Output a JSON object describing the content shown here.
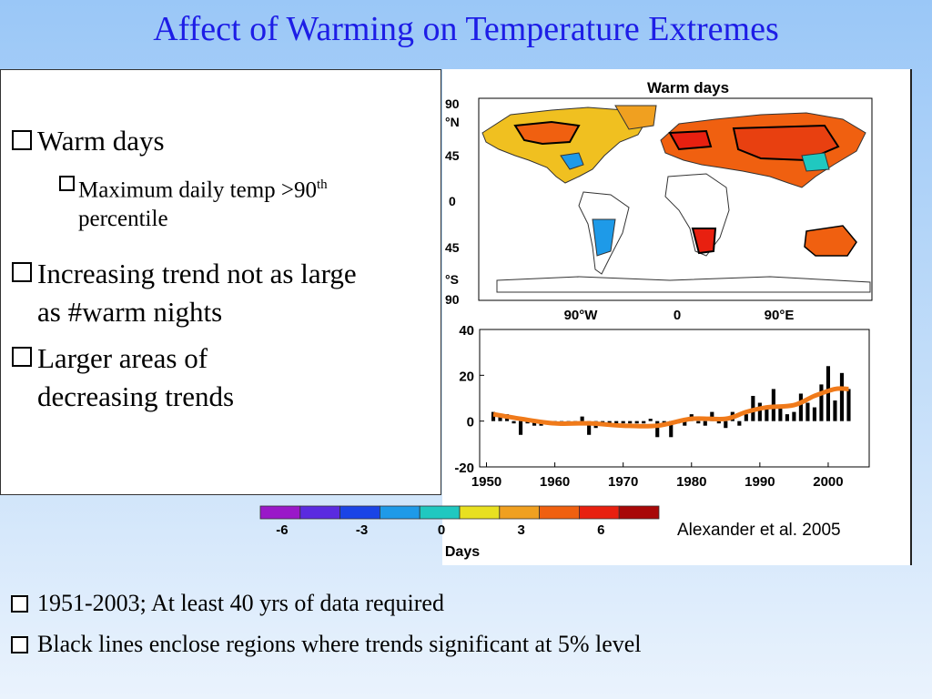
{
  "slide": {
    "title": "Affect of Warming on Temperature Extremes",
    "bullets": [
      {
        "text": "Warm days"
      },
      {
        "text": "Maximum daily temp >90",
        "sup": "th",
        "suffix": " percentile"
      },
      {
        "text": "Increasing trend not as large as #warm nights"
      },
      {
        "text": "Larger areas of decreasing trends"
      }
    ],
    "citation": "Alexander et al. 2005",
    "bottom_bullets": [
      "1951-2003; At least 40 yrs of data required",
      "Black lines enclose regions where trends significant at 5% level"
    ]
  },
  "map": {
    "title": "Warm days",
    "lat_labels": [
      "90",
      "°N",
      "45",
      "0",
      "45",
      "°S",
      "90"
    ],
    "lon_labels": [
      "90°W",
      "0",
      "90°E"
    ]
  },
  "colorbar": {
    "colors": [
      "#9a18c8",
      "#5a2ae0",
      "#1a44e6",
      "#1e9ae8",
      "#20c8c0",
      "#e8e020",
      "#f0a020",
      "#f06010",
      "#e82010",
      "#a80808"
    ],
    "tick_labels": [
      "-6",
      "-3",
      "0",
      "3",
      "6"
    ],
    "label": "Days"
  },
  "chart_data": {
    "type": "bar",
    "x": [
      1951,
      1952,
      1953,
      1954,
      1955,
      1956,
      1957,
      1958,
      1959,
      1960,
      1961,
      1962,
      1963,
      1964,
      1965,
      1966,
      1967,
      1968,
      1969,
      1970,
      1971,
      1972,
      1973,
      1974,
      1975,
      1976,
      1977,
      1978,
      1979,
      1980,
      1981,
      1982,
      1983,
      1984,
      1985,
      1986,
      1987,
      1988,
      1989,
      1990,
      1991,
      1992,
      1993,
      1994,
      1995,
      1996,
      1997,
      1998,
      1999,
      2000,
      2001,
      2002,
      2003
    ],
    "values": [
      4,
      3,
      3,
      -1,
      -6,
      -1,
      -2,
      -2,
      -1,
      -1,
      -2,
      -1,
      -1,
      2,
      -6,
      -3,
      -1,
      -1,
      -1,
      -1,
      -1,
      -1,
      -1,
      1,
      -7,
      -2,
      -7,
      -1,
      -2,
      3,
      -1,
      -2,
      4,
      -1,
      -3,
      4,
      -2,
      3,
      11,
      8,
      6,
      14,
      6,
      3,
      4,
      12,
      8,
      6,
      16,
      24,
      9,
      21,
      14
    ],
    "trend": [
      {
        "x": 1951,
        "y": 3
      },
      {
        "x": 1955,
        "y": 1
      },
      {
        "x": 1960,
        "y": -1
      },
      {
        "x": 1965,
        "y": -1
      },
      {
        "x": 1970,
        "y": -2
      },
      {
        "x": 1975,
        "y": -2
      },
      {
        "x": 1980,
        "y": 1
      },
      {
        "x": 1985,
        "y": 1
      },
      {
        "x": 1988,
        "y": 4
      },
      {
        "x": 1991,
        "y": 6
      },
      {
        "x": 1995,
        "y": 7
      },
      {
        "x": 1998,
        "y": 11
      },
      {
        "x": 2001,
        "y": 14
      },
      {
        "x": 2003,
        "y": 14
      }
    ],
    "xlim": [
      1949,
      2006
    ],
    "ylim": [
      -20,
      40
    ],
    "xticks": [
      1950,
      1960,
      1970,
      1980,
      1990,
      2000
    ],
    "yticks": [
      40,
      20,
      0,
      -20
    ],
    "bar_color": "#000000",
    "trend_color": "#f07a1a"
  }
}
